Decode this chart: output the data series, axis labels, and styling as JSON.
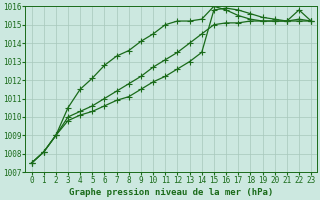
{
  "x": [
    0,
    1,
    2,
    3,
    4,
    5,
    6,
    7,
    8,
    9,
    10,
    11,
    12,
    13,
    14,
    15,
    16,
    17,
    18,
    19,
    20,
    21,
    22,
    23
  ],
  "line1": [
    1007.5,
    1008.1,
    1009.0,
    1010.0,
    1010.3,
    1010.6,
    1011.0,
    1011.4,
    1011.8,
    1012.2,
    1012.7,
    1013.1,
    1013.5,
    1014.0,
    1014.5,
    1015.0,
    1015.1,
    1015.1,
    1015.2,
    1015.2,
    1015.2,
    1015.2,
    1015.2,
    1015.2
  ],
  "line2": [
    1007.5,
    1008.1,
    1009.0,
    1009.8,
    1010.1,
    1010.3,
    1010.6,
    1010.9,
    1011.1,
    1011.5,
    1011.9,
    1012.2,
    1012.6,
    1013.0,
    1013.5,
    1015.8,
    1015.9,
    1015.8,
    1015.6,
    1015.4,
    1015.3,
    1015.2,
    1015.8,
    1015.2
  ],
  "line3": [
    1007.5,
    1008.1,
    1009.0,
    1010.5,
    1011.5,
    1012.1,
    1012.8,
    1013.3,
    1013.6,
    1014.1,
    1014.5,
    1015.0,
    1015.2,
    1015.2,
    1015.3,
    1016.0,
    1015.8,
    1015.5,
    1015.3,
    1015.2,
    1015.2,
    1015.2,
    1015.3,
    1015.2
  ],
  "ylim": [
    1007,
    1016
  ],
  "xlim": [
    -0.5,
    23.5
  ],
  "yticks": [
    1007,
    1008,
    1009,
    1010,
    1011,
    1012,
    1013,
    1014,
    1015,
    1016
  ],
  "xticks": [
    0,
    1,
    2,
    3,
    4,
    5,
    6,
    7,
    8,
    9,
    10,
    11,
    12,
    13,
    14,
    15,
    16,
    17,
    18,
    19,
    20,
    21,
    22,
    23
  ],
  "xlabel": "Graphe pression niveau de la mer (hPa)",
  "line_color": "#1a6b1a",
  "bg_color": "#cce8e0",
  "grid_color": "#a8c8bc",
  "marker": "+",
  "marker_size": 4,
  "line_width": 0.9,
  "xlabel_fontsize": 6.5,
  "tick_fontsize": 5.5
}
